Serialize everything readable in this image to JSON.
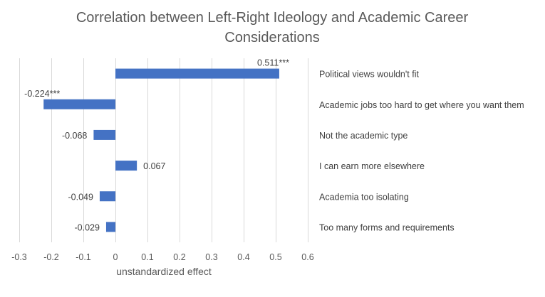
{
  "chart_data": {
    "type": "bar",
    "orientation": "horizontal",
    "title": "Correlation between Left-Right Ideology and Academic Career Considerations",
    "title_lines": [
      "Correlation between Left-Right Ideology and Academic Career",
      "Considerations"
    ],
    "xlabel": "unstandardized effect",
    "ylabel": "",
    "xlim": [
      -0.3,
      0.6
    ],
    "xticks": [
      -0.3,
      -0.2,
      -0.1,
      0,
      0.1,
      0.2,
      0.3,
      0.4,
      0.5,
      0.6
    ],
    "xtick_labels": [
      "-0.3",
      "-0.2",
      "-0.1",
      "0",
      "0.1",
      "0.2",
      "0.3",
      "0.4",
      "0.5",
      "0.6"
    ],
    "grid": true,
    "legend": "none",
    "bar_color": "#4472C4",
    "categories": [
      "Political views wouldn't fit",
      "Academic jobs too hard to get where you want them",
      "Not the academic type",
      "I can earn more elsewhere",
      "Academia too isolating",
      "Too many forms and requirements"
    ],
    "values": [
      0.511,
      -0.224,
      -0.068,
      0.067,
      -0.049,
      -0.029
    ],
    "data_labels": [
      "0.511***",
      "-0.224***",
      "-0.068",
      "0.067",
      "-0.049",
      "-0.029"
    ]
  }
}
